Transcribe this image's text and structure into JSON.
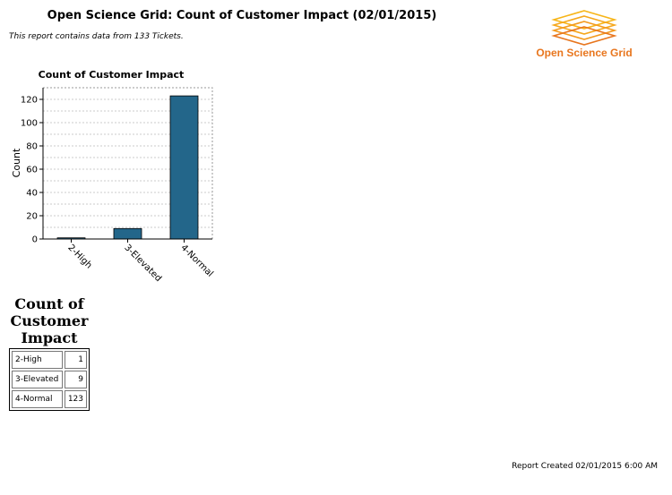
{
  "report": {
    "title": "Open Science Grid: Count of Customer Impact (02/01/2015)",
    "subtitle": "This report contains data from 133 Tickets.",
    "footer": "Report Created 02/01/2015 6:00 AM"
  },
  "logo": {
    "text": "Open Science Grid",
    "colors": [
      "#f7b518",
      "#f39a1f",
      "#e8761e"
    ]
  },
  "chart_data": {
    "type": "bar",
    "title": "Count of Customer Impact",
    "xlabel": "",
    "ylabel": "Count",
    "categories": [
      "2-High",
      "3-Elevated",
      "4-Normal"
    ],
    "values": [
      1,
      9,
      123
    ],
    "ylim": [
      0,
      130
    ],
    "yticks": [
      0,
      20,
      40,
      60,
      80,
      100,
      120
    ],
    "grid": true,
    "bar_color": "#23668a"
  },
  "summary": {
    "title": "Count of Customer Impact",
    "rows": [
      {
        "label": "2-High",
        "value": "1"
      },
      {
        "label": "3-Elevated",
        "value": "9"
      },
      {
        "label": "4-Normal",
        "value": "123"
      }
    ]
  }
}
